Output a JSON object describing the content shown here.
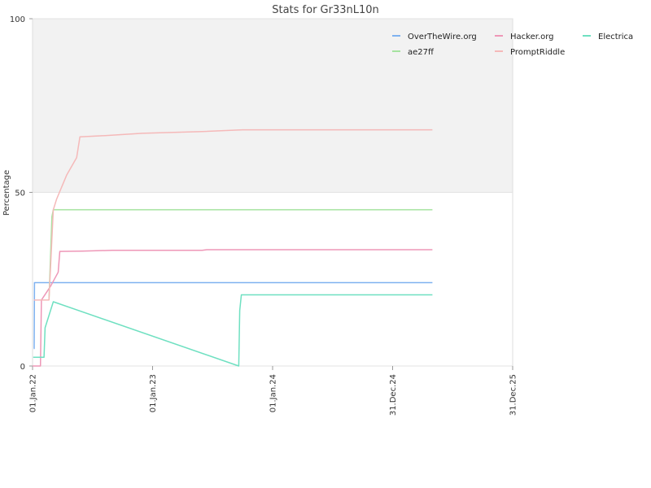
{
  "chart_data": {
    "type": "line",
    "title": "Stats for Gr33nL10n",
    "xlabel": "",
    "ylabel": "Percentage",
    "x_ticks": [
      "01.Jan.22",
      "01.Jan.23",
      "01.Jan.24",
      "31.Dec.24",
      "31.Dec.25"
    ],
    "y_ticks": [
      0,
      50,
      100
    ],
    "xlim": [
      "2022-01-01",
      "2025-12-31"
    ],
    "ylim": [
      0,
      100
    ],
    "upper_band": {
      "from": 50,
      "to": 100,
      "color": "#f2f2f2"
    },
    "grid": true,
    "legend_position": "top-right",
    "series": [
      {
        "name": "OverTheWire.org",
        "color": "#7fb2f0",
        "points": [
          [
            "2022-01-05",
            5
          ],
          [
            "2022-01-06",
            5
          ],
          [
            "2022-01-07",
            24
          ],
          [
            "2025-05-01",
            24
          ]
        ]
      },
      {
        "name": "Hacker.org",
        "color": "#ee97b7",
        "points": [
          [
            "2022-01-01",
            0
          ],
          [
            "2022-01-25",
            0
          ],
          [
            "2022-01-28",
            19
          ],
          [
            "2022-02-25",
            23
          ],
          [
            "2022-03-20",
            27
          ],
          [
            "2022-03-25",
            33
          ],
          [
            "2022-06-01",
            33.1
          ],
          [
            "2022-09-01",
            33.3
          ],
          [
            "2023-06-01",
            33.3
          ],
          [
            "2023-06-15",
            33.5
          ],
          [
            "2025-05-01",
            33.5
          ]
        ]
      },
      {
        "name": "Electrica",
        "color": "#6fe0c1",
        "points": [
          [
            "2022-01-03",
            2.5
          ],
          [
            "2022-02-05",
            2.5
          ],
          [
            "2022-02-08",
            11
          ],
          [
            "2022-03-05",
            18.5
          ],
          [
            "2023-09-20",
            0
          ],
          [
            "2023-09-23",
            16
          ],
          [
            "2023-09-28",
            20.5
          ],
          [
            "2025-05-01",
            20.5
          ]
        ]
      },
      {
        "name": "ae27ff",
        "color": "#a6e3a0",
        "points": [
          [
            "2022-02-20",
            19
          ],
          [
            "2022-03-01",
            43
          ],
          [
            "2022-03-05",
            45
          ],
          [
            "2025-05-01",
            45
          ]
        ]
      },
      {
        "name": "PromptRiddle",
        "color": "#f5b9b9",
        "points": [
          [
            "2022-01-05",
            19
          ],
          [
            "2022-02-20",
            19
          ],
          [
            "2022-03-05",
            45
          ],
          [
            "2022-03-15",
            48
          ],
          [
            "2022-04-15",
            55
          ],
          [
            "2022-05-15",
            60
          ],
          [
            "2022-05-25",
            66
          ],
          [
            "2022-08-01",
            66.3
          ],
          [
            "2022-12-01",
            67
          ],
          [
            "2023-06-01",
            67.5
          ],
          [
            "2023-10-01",
            68
          ],
          [
            "2025-05-01",
            68
          ]
        ]
      }
    ]
  }
}
